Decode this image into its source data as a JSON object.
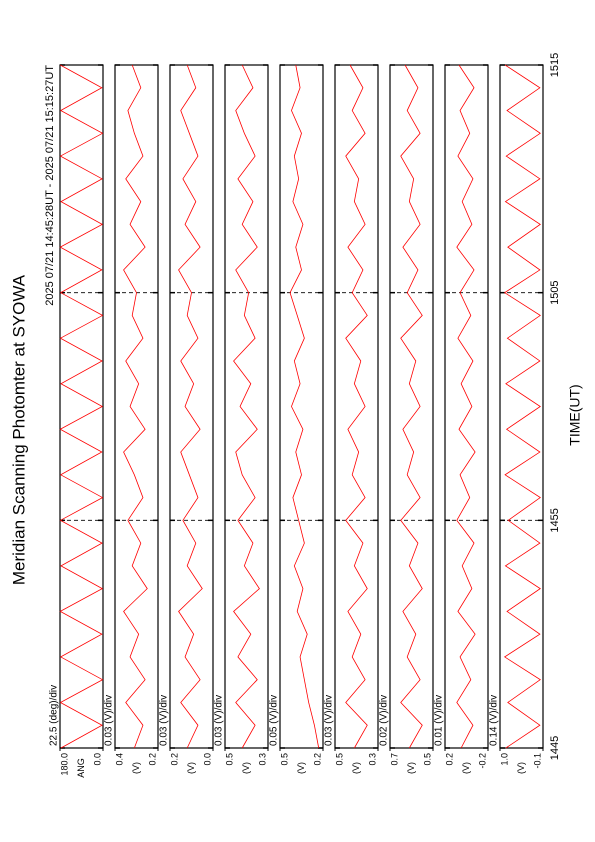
{
  "chart_data": {
    "type": "line",
    "title": "Meridian Scanning Photomter at SYOWA",
    "subtitle": "2025 07/21 14:45:28UT - 2025 07/21 15:15:27UT",
    "xlabel": "TIME(UT)",
    "color": "#ff0000",
    "x": [
      0,
      1,
      2,
      3,
      4,
      5,
      6,
      7,
      8,
      9,
      10,
      11,
      12,
      13,
      14,
      15,
      16,
      17,
      18,
      19,
      20,
      21,
      22,
      23,
      24,
      25,
      26,
      27,
      28,
      29,
      30
    ],
    "xlim": [
      0,
      30
    ],
    "xticks": [
      {
        "value": 0,
        "label": "1445"
      },
      {
        "value": 10,
        "label": "1455"
      },
      {
        "value": 20,
        "label": "1505"
      },
      {
        "value": 30,
        "label": "1515"
      }
    ],
    "panels": [
      {
        "scale_label": "22.5 (deg)/div",
        "ylabel": "ANG",
        "ylim": [
          0,
          180
        ],
        "yticks": [
          {
            "value": 0,
            "label": "0.0"
          },
          {
            "value": 180,
            "label": "180.0"
          }
        ],
        "values": [
          176,
          4,
          178,
          2,
          177,
          5,
          179,
          3,
          176,
          4,
          178,
          2,
          177,
          5,
          179,
          3,
          176,
          4,
          178,
          2,
          177,
          5,
          179,
          3,
          176,
          4,
          178,
          2,
          177,
          5,
          179
        ]
      },
      {
        "scale_label": "0.03 (V)/div",
        "ylabel": "(V)",
        "ylim": [
          0.2,
          0.4
        ],
        "yticks": [
          0.2,
          0.4
        ],
        "values": [
          0.31,
          0.27,
          0.35,
          0.26,
          0.33,
          0.29,
          0.36,
          0.25,
          0.32,
          0.28,
          0.34,
          0.27,
          0.31,
          0.36,
          0.26,
          0.33,
          0.29,
          0.35,
          0.27,
          0.32,
          0.3,
          0.36,
          0.26,
          0.33,
          0.28,
          0.35,
          0.27,
          0.31,
          0.34,
          0.28,
          0.32
        ]
      },
      {
        "scale_label": "0.03 (V)/div",
        "ylabel": "(V)",
        "ylim": [
          0.0,
          0.2
        ],
        "yticks": [
          {
            "value": 0,
            "label": "0.0"
          },
          0.2
        ],
        "values": [
          0.12,
          0.07,
          0.15,
          0.06,
          0.13,
          0.09,
          0.16,
          0.05,
          0.12,
          0.08,
          0.14,
          0.07,
          0.11,
          0.15,
          0.06,
          0.13,
          0.09,
          0.15,
          0.07,
          0.12,
          0.1,
          0.16,
          0.06,
          0.13,
          0.08,
          0.14,
          0.07,
          0.11,
          0.15,
          0.08,
          0.12
        ]
      },
      {
        "scale_label": "0.03 (V)/div",
        "ylabel": "(V)",
        "ylim": [
          0.3,
          0.5
        ],
        "yticks": [
          0.3,
          0.5
        ],
        "values": [
          0.42,
          0.36,
          0.45,
          0.35,
          0.44,
          0.38,
          0.46,
          0.34,
          0.41,
          0.37,
          0.44,
          0.36,
          0.42,
          0.45,
          0.35,
          0.43,
          0.38,
          0.46,
          0.36,
          0.41,
          0.39,
          0.45,
          0.35,
          0.42,
          0.37,
          0.44,
          0.36,
          0.41,
          0.45,
          0.37,
          0.42
        ]
      },
      {
        "scale_label": "0.05 (V)/div",
        "ylabel": "(V)",
        "ylim": [
          0.2,
          0.5
        ],
        "yticks": [
          0.2,
          0.5
        ],
        "values": [
          0.23,
          0.26,
          0.3,
          0.33,
          0.36,
          0.31,
          0.38,
          0.34,
          0.4,
          0.33,
          0.37,
          0.41,
          0.35,
          0.39,
          0.34,
          0.42,
          0.36,
          0.4,
          0.33,
          0.38,
          0.43,
          0.35,
          0.39,
          0.34,
          0.41,
          0.37,
          0.4,
          0.35,
          0.42,
          0.36,
          0.39
        ]
      },
      {
        "scale_label": "0.03 (V)/div",
        "ylabel": "(V)",
        "ylim": [
          0.3,
          0.5
        ],
        "yticks": [
          0.3,
          0.5
        ],
        "values": [
          0.41,
          0.35,
          0.45,
          0.36,
          0.42,
          0.38,
          0.44,
          0.35,
          0.41,
          0.37,
          0.45,
          0.36,
          0.42,
          0.39,
          0.44,
          0.36,
          0.41,
          0.38,
          0.45,
          0.35,
          0.42,
          0.37,
          0.44,
          0.36,
          0.41,
          0.39,
          0.45,
          0.36,
          0.42,
          0.37,
          0.43
        ]
      },
      {
        "scale_label": "0.02 (V)/div",
        "ylabel": "(V)",
        "ylim": [
          0.5,
          0.7
        ],
        "yticks": [
          0.5,
          0.7
        ],
        "values": [
          0.61,
          0.55,
          0.65,
          0.56,
          0.62,
          0.58,
          0.64,
          0.55,
          0.61,
          0.57,
          0.65,
          0.56,
          0.62,
          0.59,
          0.64,
          0.56,
          0.61,
          0.58,
          0.65,
          0.55,
          0.62,
          0.57,
          0.64,
          0.56,
          0.61,
          0.59,
          0.65,
          0.56,
          0.62,
          0.57,
          0.63
        ]
      },
      {
        "scale_label": "0.01 (V)/div",
        "ylabel": "(V)",
        "ylim": [
          -0.2,
          0.2
        ],
        "yticks": [
          -0.2,
          0.2
        ],
        "values": [
          0.05,
          -0.06,
          0.09,
          -0.04,
          0.06,
          -0.08,
          0.08,
          -0.05,
          0.04,
          -0.07,
          0.09,
          -0.03,
          0.06,
          -0.08,
          0.07,
          -0.05,
          0.05,
          -0.06,
          0.08,
          -0.04,
          0.06,
          -0.07,
          0.09,
          -0.05,
          0.04,
          -0.06,
          0.08,
          -0.03,
          0.06,
          -0.07,
          0.07
        ]
      },
      {
        "scale_label": "0.14 (V)/div",
        "ylabel": "(V)",
        "ylim": [
          -0.1,
          1.0
        ],
        "yticks": [
          -0.1,
          {
            "value": 1,
            "label": "1.0"
          }
        ],
        "values": [
          0.85,
          -0.02,
          0.8,
          -0.03,
          0.88,
          -0.02,
          0.82,
          -0.03,
          0.86,
          -0.02,
          0.79,
          -0.03,
          0.87,
          -0.02,
          0.83,
          -0.03,
          0.85,
          -0.02,
          0.81,
          -0.03,
          0.88,
          -0.02,
          0.8,
          -0.03,
          0.86,
          -0.02,
          0.84,
          -0.03,
          0.82,
          -0.02,
          0.87
        ]
      }
    ]
  }
}
